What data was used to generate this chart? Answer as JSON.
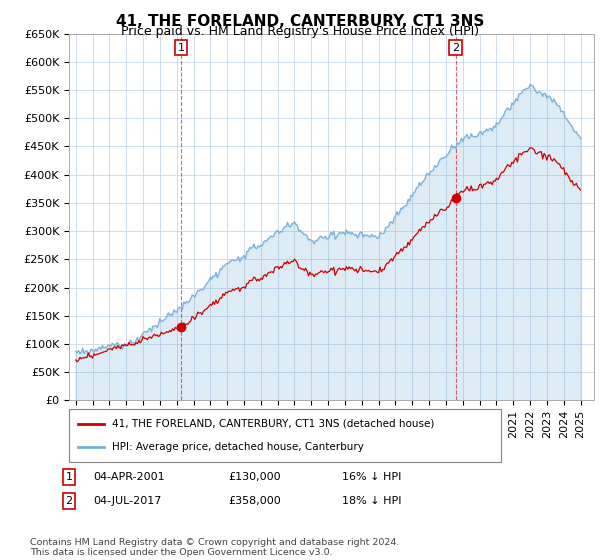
{
  "title": "41, THE FORELAND, CANTERBURY, CT1 3NS",
  "subtitle": "Price paid vs. HM Land Registry's House Price Index (HPI)",
  "ylim": [
    0,
    650000
  ],
  "hpi_color": "#7ab0d8",
  "hpi_fill_color": "#d6e8f5",
  "price_color": "#cc0000",
  "vline_color": "#cc0000",
  "marker1_year": 2001.25,
  "marker1_price": 130000,
  "marker2_year": 2017.58,
  "marker2_price": 358000,
  "legend_label1": "41, THE FORELAND, CANTERBURY, CT1 3NS (detached house)",
  "legend_label2": "HPI: Average price, detached house, Canterbury",
  "annotation1_date": "04-APR-2001",
  "annotation1_price": "£130,000",
  "annotation1_pct": "16% ↓ HPI",
  "annotation2_date": "04-JUL-2017",
  "annotation2_price": "£358,000",
  "annotation2_pct": "18% ↓ HPI",
  "footnote": "Contains HM Land Registry data © Crown copyright and database right 2024.\nThis data is licensed under the Open Government Licence v3.0.",
  "bg_color": "#ffffff",
  "plot_bg_color": "#ffffff",
  "grid_color": "#c8d8e8",
  "title_fontsize": 11,
  "subtitle_fontsize": 9,
  "tick_fontsize": 8
}
